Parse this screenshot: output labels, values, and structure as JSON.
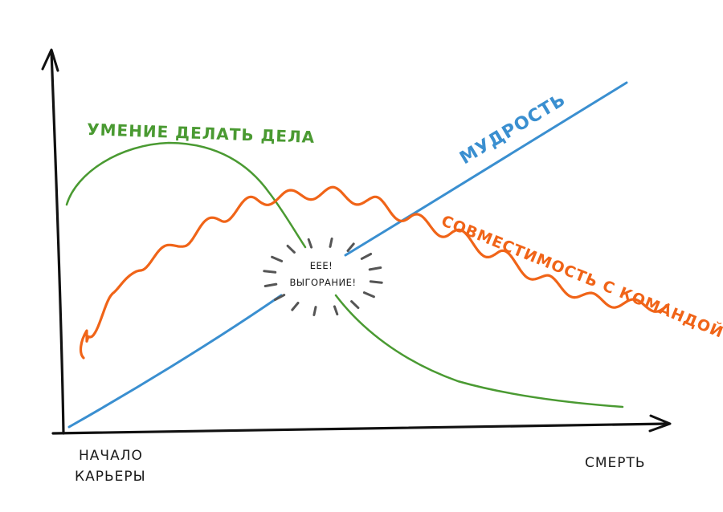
{
  "curves": {
    "skill": {
      "label": "УМЕНИЕ ДЕЛАТЬ ДЕЛА",
      "color": "#4a9a32"
    },
    "wisdom": {
      "label": "МУДРОСТЬ",
      "color": "#3a8fd0"
    },
    "compat": {
      "label": "СОВМЕСТИМОСТЬ С КОМАНДОЙ",
      "color": "#f06418"
    }
  },
  "axis": {
    "x_start_line1": "НАЧАЛО",
    "x_start_line2": "КАРЬЕРЫ",
    "x_end": "СМЕРТЬ",
    "color": "#111111"
  },
  "burst": {
    "line1": "ЕЕЕ!",
    "line2": "ВЫГОРАНИЕ!",
    "color": "#555555"
  }
}
